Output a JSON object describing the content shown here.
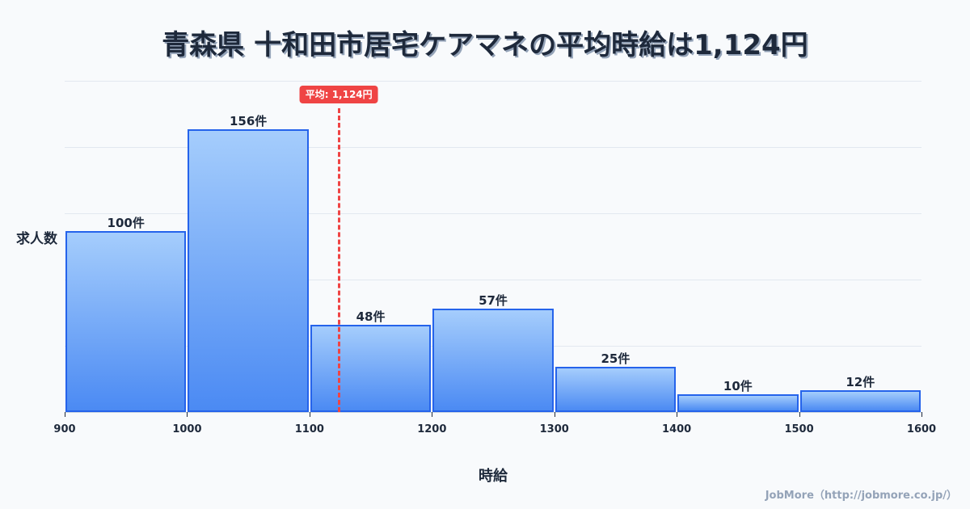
{
  "title": "青森県 十和田市居宅ケアマネの平均時給は1,124円",
  "mean_badge": "平均: 1,124円",
  "ylabel": "求人数",
  "xlabel": "時給",
  "footer": "JobMore（http://jobmore.co.jp/）",
  "colors": {
    "bar_fill_top": "#a5cdfc",
    "bar_fill_bottom": "#4b8af3",
    "bar_border": "#2563eb",
    "mean_line": "#ef4444",
    "text": "#1e293b",
    "background": "#f8fafc"
  },
  "bars": [
    {
      "label": "100件"
    },
    {
      "label": "156件"
    },
    {
      "label": "48件"
    },
    {
      "label": "57件"
    },
    {
      "label": "25件"
    },
    {
      "label": "10件"
    },
    {
      "label": "12件"
    }
  ],
  "ticks": [
    "900",
    "1000",
    "1100",
    "1200",
    "1300",
    "1400",
    "1500",
    "1600"
  ],
  "chart_data": {
    "type": "bar",
    "subtype": "histogram",
    "title": "青森県 十和田市居宅ケアマネの平均時給は1,124円",
    "xlabel": "時給",
    "ylabel": "求人数",
    "bins": [
      [
        900,
        1000
      ],
      [
        1000,
        1100
      ],
      [
        1100,
        1200
      ],
      [
        1200,
        1300
      ],
      [
        1300,
        1400
      ],
      [
        1400,
        1500
      ],
      [
        1500,
        1600
      ]
    ],
    "categories": [
      "900-1000",
      "1000-1100",
      "1100-1200",
      "1200-1300",
      "1300-1400",
      "1400-1500",
      "1500-1600"
    ],
    "values": [
      100,
      156,
      48,
      57,
      25,
      10,
      12
    ],
    "value_labels": [
      "100件",
      "156件",
      "48件",
      "57件",
      "25件",
      "10件",
      "12件"
    ],
    "x_ticks": [
      900,
      1000,
      1100,
      1200,
      1300,
      1400,
      1500,
      1600
    ],
    "xlim": [
      900,
      1600
    ],
    "ylim": [
      0,
      183
    ],
    "grid": {
      "horizontal": true,
      "vertical": false
    },
    "annotations": [
      {
        "type": "vline",
        "x": 1124,
        "style": "dashed",
        "color": "#ef4444",
        "label": "平均: 1,124円"
      }
    ],
    "legend": null
  }
}
